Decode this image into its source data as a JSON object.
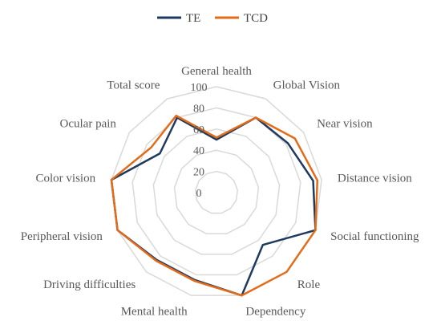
{
  "chart_data": {
    "type": "radar",
    "categories": [
      "General health",
      "Global Vision",
      "Near vision",
      "Distance vision",
      "Social functioning",
      "Role",
      "Dependency",
      "Mental health",
      "Driving difficulties",
      "Peripheral vision",
      "Color vision",
      "Ocular pain",
      "Total score"
    ],
    "series": [
      {
        "name": "TE",
        "color": "#1f3a5f",
        "values": [
          50,
          80,
          82,
          92,
          100,
          66,
          100,
          85,
          85,
          100,
          100,
          65,
          80
        ]
      },
      {
        "name": "TCD",
        "color": "#e36c1a",
        "values": [
          52,
          80,
          90,
          96,
          100,
          100,
          100,
          86,
          86,
          100,
          100,
          75,
          82
        ]
      }
    ],
    "radial_ticks": [
      "0",
      "20",
      "40",
      "60",
      "80",
      "100"
    ],
    "rlim": [
      0,
      100
    ],
    "grid": true,
    "legend": "top"
  }
}
